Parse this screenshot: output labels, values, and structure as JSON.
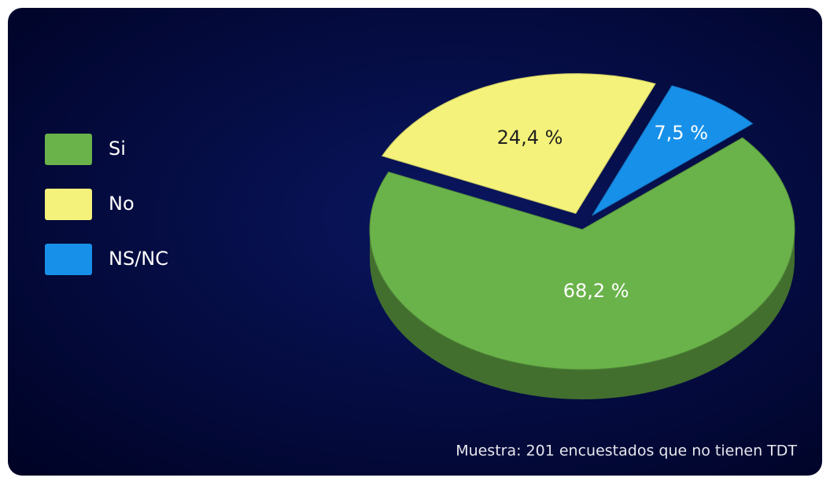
{
  "chart_data": {
    "type": "pie",
    "categories": [
      "Si",
      "No",
      "NS/NC"
    ],
    "values": [
      68.2,
      24.4,
      7.5
    ],
    "value_labels": [
      "68,2 %",
      "24,4 %",
      "7,5 %"
    ],
    "colors": [
      "#6ab34a",
      "#f4f27a",
      "#1790ea"
    ],
    "legend": "left",
    "annotation": "Muestra: 201 encuestados que no tienen TDT"
  }
}
